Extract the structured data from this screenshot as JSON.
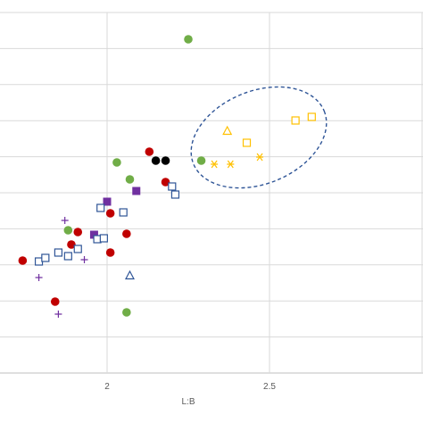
{
  "chart_data": {
    "type": "scatter",
    "xlabel": "L:B",
    "ylabel": "",
    "xlim": [
      1.7,
      3.0
    ],
    "x_ticks": [
      {
        "value": 2,
        "label": "2"
      },
      {
        "value": 2.5,
        "label": "2.5"
      }
    ],
    "grid": {
      "horizontal": true,
      "vertical": true
    },
    "colors": {
      "green": "#70ad47",
      "red": "#c00000",
      "black": "#000000",
      "purple": "#7030a0",
      "blue": "#2f5597",
      "gold": "#ffc000",
      "ellipse": "#2f5597"
    },
    "series": [
      {
        "marker": "circle-filled",
        "color": "#70ad47",
        "points": [
          [
            2.25,
            44
          ],
          [
            2.06,
            350
          ],
          [
            2.03,
            182
          ],
          [
            2.07,
            201
          ],
          [
            2.29,
            180
          ],
          [
            1.88,
            258
          ]
        ]
      },
      {
        "marker": "circle-filled",
        "color": "#c00000",
        "points": [
          [
            1.74,
            292
          ],
          [
            1.84,
            338
          ],
          [
            1.89,
            274
          ],
          [
            1.91,
            260
          ],
          [
            2.01,
            239
          ],
          [
            2.06,
            262
          ],
          [
            2.01,
            283
          ],
          [
            2.13,
            170
          ],
          [
            2.18,
            204
          ]
        ]
      },
      {
        "marker": "circle-filled",
        "color": "#000000",
        "points": [
          [
            2.15,
            180
          ],
          [
            2.18,
            180
          ]
        ]
      },
      {
        "marker": "square-filled",
        "color": "#7030a0",
        "points": [
          [
            2.0,
            226
          ],
          [
            2.09,
            214
          ],
          [
            1.96,
            263
          ]
        ]
      },
      {
        "marker": "square-open",
        "color": "#2f5597",
        "points": [
          [
            1.79,
            293
          ],
          [
            1.81,
            289
          ],
          [
            1.85,
            283
          ],
          [
            1.88,
            287
          ],
          [
            1.91,
            279
          ],
          [
            1.97,
            268
          ],
          [
            1.99,
            267
          ],
          [
            1.98,
            233
          ],
          [
            2.05,
            238
          ],
          [
            2.2,
            209
          ],
          [
            2.21,
            218
          ]
        ]
      },
      {
        "marker": "triangle-open",
        "color": "#2f5597",
        "points": [
          [
            2.07,
            309
          ]
        ]
      },
      {
        "marker": "plus",
        "color": "#7030a0",
        "points": [
          [
            1.87,
            247
          ],
          [
            1.93,
            291
          ],
          [
            1.79,
            311
          ],
          [
            1.85,
            352
          ]
        ]
      },
      {
        "marker": "triangle-open",
        "color": "#ffc000",
        "points": [
          [
            2.37,
            147
          ]
        ]
      },
      {
        "marker": "square-open",
        "color": "#ffc000",
        "points": [
          [
            2.43,
            160
          ],
          [
            2.58,
            135
          ],
          [
            2.63,
            131
          ]
        ]
      },
      {
        "marker": "asterisk",
        "color": "#ffc000",
        "points": [
          [
            2.33,
            184
          ],
          [
            2.38,
            184
          ],
          [
            2.47,
            176
          ]
        ]
      }
    ]
  }
}
